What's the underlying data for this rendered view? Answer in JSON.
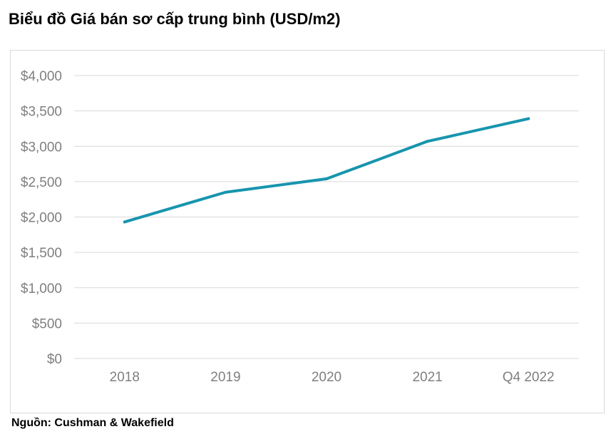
{
  "title": "Biểu đồ Giá bán sơ cấp trung bình (USD/m2)",
  "source": "Nguồn: Cushman & Wakefield",
  "colors": {
    "line": "#1795ae",
    "grid": "#d9d9d9",
    "tick": "#7f7f7f"
  },
  "chart_data": {
    "type": "line",
    "categories": [
      "2018",
      "2019",
      "2020",
      "2021",
      "Q4 2022"
    ],
    "series": [
      {
        "values": [
          1930,
          2350,
          2540,
          3070,
          3390
        ]
      }
    ],
    "ylim": [
      0,
      4000
    ],
    "yticks": [
      0,
      500,
      1000,
      1500,
      2000,
      2500,
      3000,
      3500,
      4000
    ],
    "ytick_labels": [
      "$0",
      "$500",
      "$1,000",
      "$1,500",
      "$2,000",
      "$2,500",
      "$3,000",
      "$3,500",
      "$4,000"
    ],
    "grid": true,
    "legend": "none"
  }
}
